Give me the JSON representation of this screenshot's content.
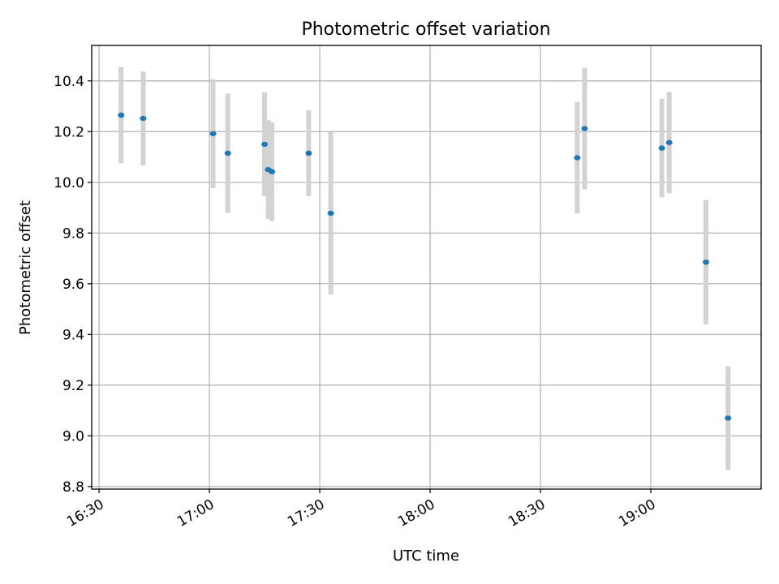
{
  "chart_data": {
    "type": "scatter",
    "title": "Photometric offset variation",
    "xlabel": "UTC time",
    "ylabel": "Photometric offset",
    "grid": true,
    "xlim": [
      "16:28",
      "19:30"
    ],
    "ylim": [
      8.79,
      10.54
    ],
    "xticks": [
      "16:30",
      "17:00",
      "17:30",
      "18:00",
      "18:30",
      "19:00"
    ],
    "yticks": [
      8.8,
      9.0,
      9.2,
      9.4,
      9.6,
      9.8,
      10.0,
      10.2,
      10.4
    ],
    "ytick_labels": [
      "8.8",
      "9.0",
      "9.2",
      "9.4",
      "9.6",
      "9.8",
      "10.0",
      "10.2",
      "10.4"
    ],
    "colors": {
      "point": "#1f77b4",
      "errorbar": "#d3d3d3"
    },
    "series": [
      {
        "points": [
          {
            "x": "16:36",
            "y": 10.265,
            "err": 0.19
          },
          {
            "x": "16:42",
            "y": 10.252,
            "err": 0.185
          },
          {
            "x": "17:01",
            "y": 10.192,
            "err": 0.215
          },
          {
            "x": "17:05",
            "y": 10.115,
            "err": 0.235
          },
          {
            "x": "17:15",
            "y": 10.15,
            "err": 0.205
          },
          {
            "x": "17:16",
            "y": 10.05,
            "err": 0.195
          },
          {
            "x": "17:17",
            "y": 10.042,
            "err": 0.195
          },
          {
            "x": "17:27",
            "y": 10.115,
            "err": 0.17
          },
          {
            "x": "17:33",
            "y": 9.878,
            "err": 0.32
          },
          {
            "x": "18:40",
            "y": 10.097,
            "err": 0.22
          },
          {
            "x": "18:42",
            "y": 10.212,
            "err": 0.24
          },
          {
            "x": "19:03",
            "y": 10.135,
            "err": 0.195
          },
          {
            "x": "19:05",
            "y": 10.157,
            "err": 0.2
          },
          {
            "x": "19:15",
            "y": 9.685,
            "err": 0.245
          },
          {
            "x": "19:21",
            "y": 9.07,
            "err": 0.205
          }
        ]
      }
    ]
  }
}
